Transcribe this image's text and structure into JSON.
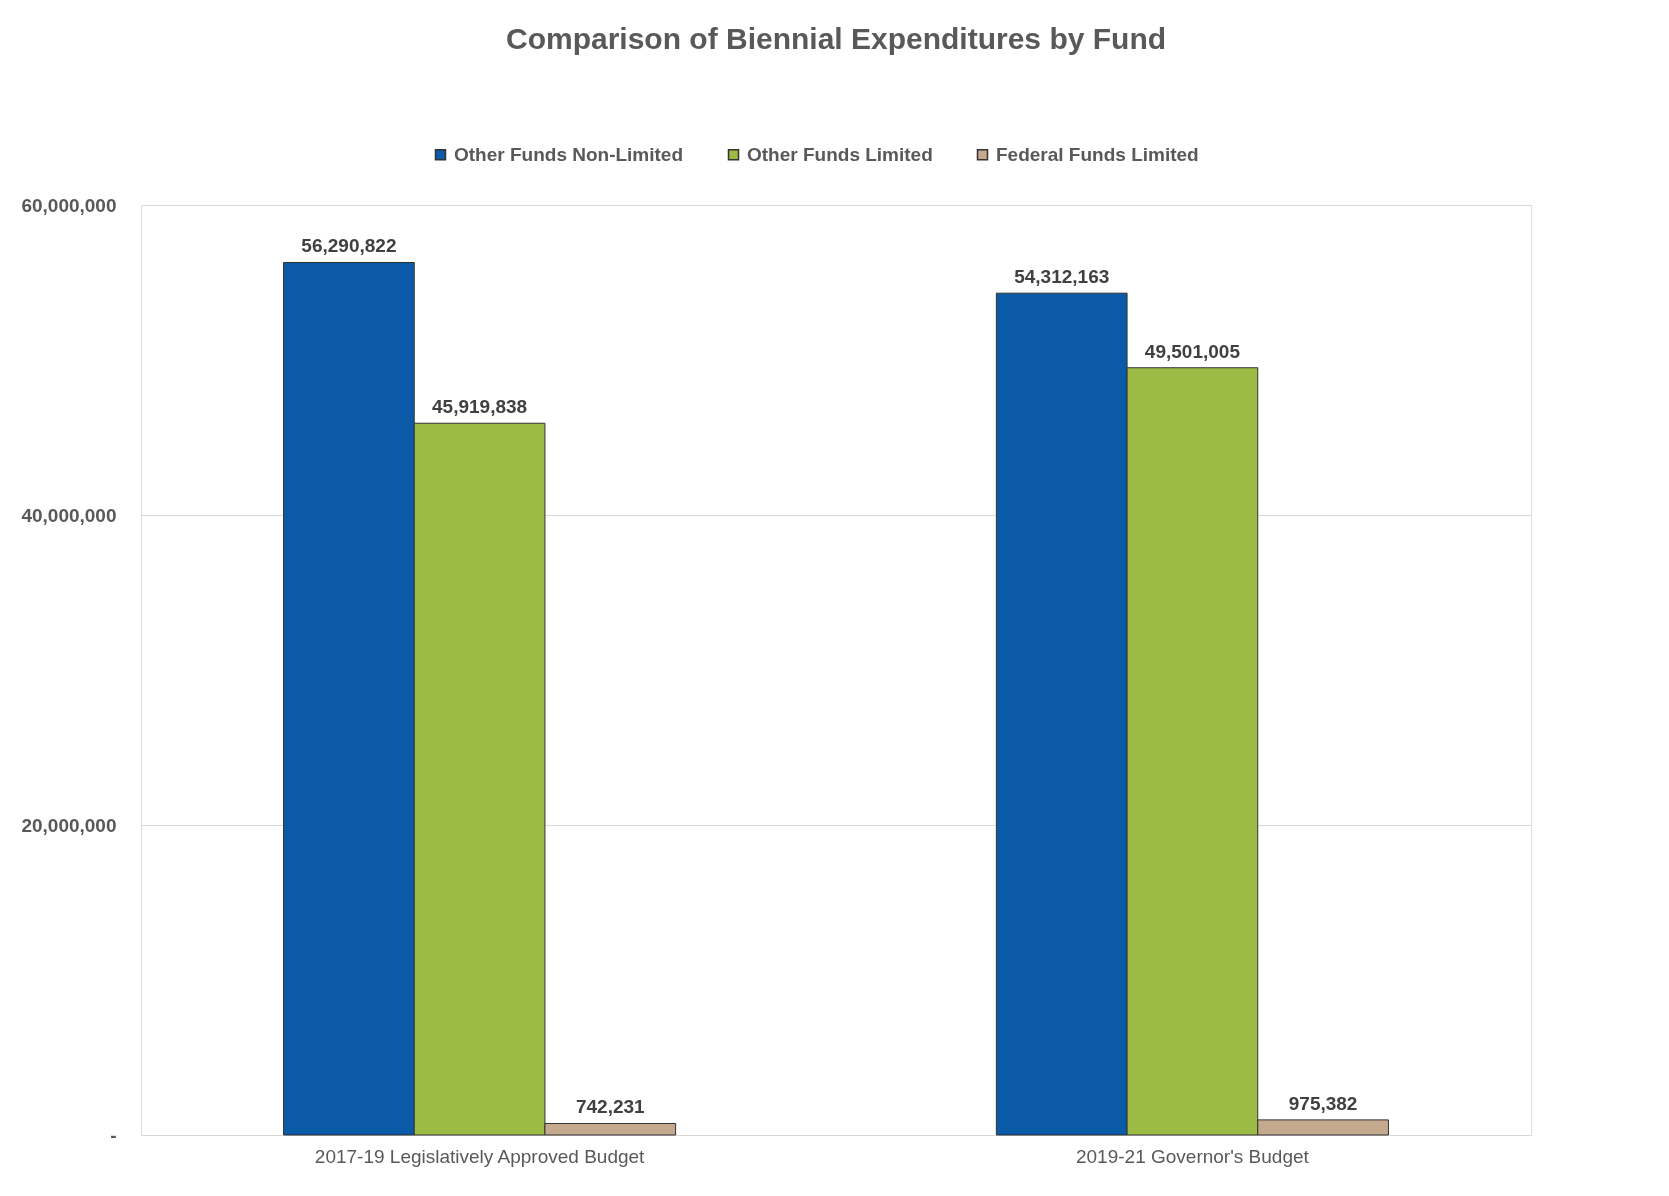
{
  "chart_data": {
    "type": "bar",
    "title": "Comparison of Biennial Expenditures by Fund",
    "categories": [
      "2017-19 Legislatively Approved Budget",
      "2019-21 Governor's Budget"
    ],
    "series": [
      {
        "name": "Other Funds Non-Limited",
        "color": "#0a5aa8",
        "values": [
          56290822,
          54312163
        ],
        "value_labels": [
          "56,290,822",
          "54,312,163"
        ]
      },
      {
        "name": "Other Funds Limited",
        "color": "#9bbb45",
        "values": [
          45919838,
          49501005
        ],
        "value_labels": [
          "45,919,838",
          "49,501,005"
        ]
      },
      {
        "name": "Federal Funds Limited",
        "color": "#c4a98e",
        "values": [
          742231,
          975382
        ],
        "value_labels": [
          "742,231",
          "975,382"
        ]
      }
    ],
    "ylim": [
      0,
      60000000
    ],
    "yticks": [
      {
        "value": 0,
        "label": "-"
      },
      {
        "value": 20000000,
        "label": "20,000,000"
      },
      {
        "value": 40000000,
        "label": "40,000,000"
      },
      {
        "value": 60000000,
        "label": "60,000,000"
      }
    ],
    "grid": "y",
    "legend": "top"
  }
}
